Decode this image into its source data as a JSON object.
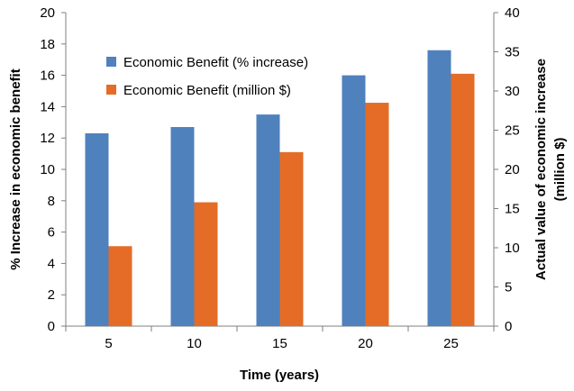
{
  "chart_data": {
    "type": "bar",
    "categories": [
      "5",
      "10",
      "15",
      "20",
      "25"
    ],
    "series": [
      {
        "name": "Economic Benefit (% increase)",
        "axis": "left",
        "color": "#4f81bd",
        "values": [
          12.3,
          12.7,
          13.5,
          16.0,
          17.6
        ]
      },
      {
        "name": "Economic Benefit (million $)",
        "axis": "right",
        "color": "#e46c26",
        "values": [
          10.2,
          15.8,
          22.2,
          28.5,
          32.2
        ]
      }
    ],
    "xlabel": "Time (years)",
    "ylabel": "% Increase in economic benefit",
    "y2label_line1": "Actual value of economic increase",
    "y2label_line2": "(million $)",
    "ylim": [
      0,
      20
    ],
    "yticks": [
      0,
      2,
      4,
      6,
      8,
      10,
      12,
      14,
      16,
      18,
      20
    ],
    "y2lim": [
      0,
      40
    ],
    "y2ticks": [
      0,
      5,
      10,
      15,
      20,
      25,
      30,
      35,
      40
    ],
    "grid": false,
    "legend_position": "top-left"
  }
}
